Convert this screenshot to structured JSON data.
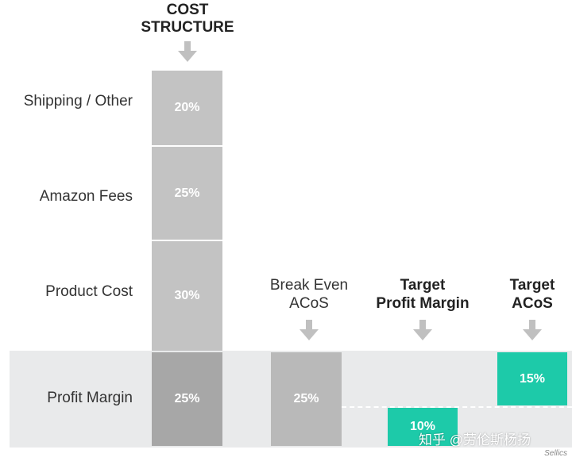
{
  "colors": {
    "block_light": "#c3c3c3",
    "block_dark": "#a7a7a7",
    "block_break_even": "#b9b9b9",
    "teal": "#1dcaa9",
    "arrow": "#c0c0c0",
    "band": "#e9eaeb"
  },
  "cost_structure": {
    "header_line1": "COST",
    "header_line2": "STRUCTURE",
    "rows": [
      {
        "label": "Shipping / Other",
        "value": "20%"
      },
      {
        "label": "Amazon Fees",
        "value": "25%"
      },
      {
        "label": "Product Cost",
        "value": "30%"
      },
      {
        "label": "Profit Margin",
        "value": "25%"
      }
    ]
  },
  "break_even": {
    "header_line1": "Break Even",
    "header_line2": "ACoS",
    "value": "25%"
  },
  "target_profit": {
    "header_line1": "Target",
    "header_line2": "Profit Margin",
    "value": "10%"
  },
  "target_acos": {
    "header_line1": "Target",
    "header_line2": "ACoS",
    "value": "15%"
  },
  "watermark": "知乎 @劳伦斯杨扬",
  "credit": "Sellics"
}
